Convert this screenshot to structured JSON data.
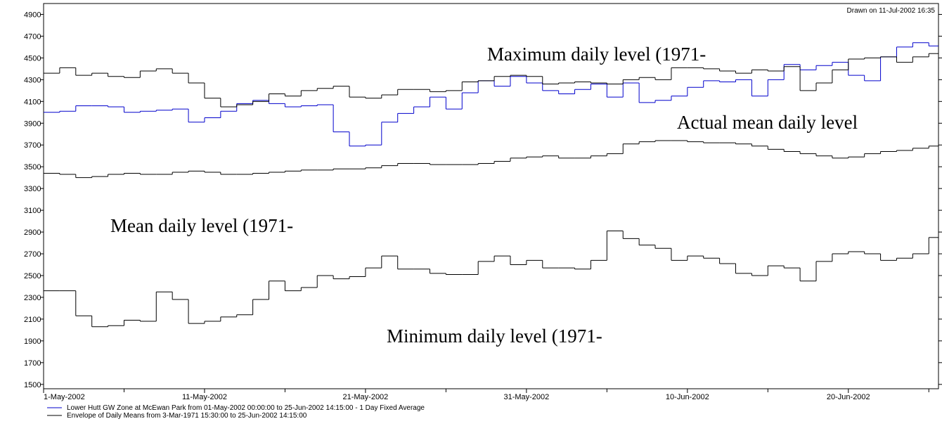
{
  "chart_data": {
    "type": "step",
    "drawn_on": "Drawn on 11-Jul-2002 16:35",
    "annotations": [
      "Maximum daily level (1971-",
      "Actual mean daily level",
      "Mean daily level (1971-",
      "Minimum daily level (1971-"
    ],
    "xlim": [
      0,
      55.6
    ],
    "xticks": [
      {
        "value": 0,
        "label": "1-May-2002"
      },
      {
        "value": 10,
        "label": "11-May-2002"
      },
      {
        "value": 20,
        "label": "21-May-2002"
      },
      {
        "value": 30,
        "label": "31-May-2002"
      },
      {
        "value": 40,
        "label": "10-Jun-2002"
      },
      {
        "value": 50,
        "label": "20-Jun-2002"
      }
    ],
    "minor_xticks": [
      5,
      15,
      25,
      35,
      45,
      55
    ],
    "ylim": [
      1460,
      5000
    ],
    "yticks": [
      1500,
      1700,
      1900,
      2100,
      2300,
      2500,
      2700,
      2900,
      3100,
      3300,
      3500,
      3700,
      3900,
      4100,
      4300,
      4500,
      4700,
      4900
    ],
    "series": [
      {
        "name": "Lower Hutt GW Zone at McEwan Park from 01-May-2002 00:00:00 to 25-Jun-2002 14:15:00 - 1 Day Fixed Average",
        "color": "#0000cc",
        "values": [
          4000,
          4010,
          4060,
          4060,
          4050,
          4000,
          4010,
          4020,
          4030,
          3910,
          3950,
          4010,
          4080,
          4110,
          4080,
          4050,
          4060,
          4070,
          3820,
          3690,
          3700,
          3910,
          3990,
          4050,
          4140,
          4030,
          4180,
          4290,
          4240,
          4330,
          4270,
          4200,
          4170,
          4210,
          4260,
          4140,
          4270,
          4090,
          4110,
          4150,
          4230,
          4290,
          4280,
          4300,
          4150,
          4300,
          4440,
          4390,
          4430,
          4460,
          4340,
          4290,
          4510,
          4600,
          4640,
          4610
        ]
      },
      {
        "name": "Envelope of Daily Means from  3-Mar-1971 15:30:00 to 25-Jun-2002 14:15:00",
        "color": "#000000",
        "values": [
          4360,
          4410,
          4340,
          4360,
          4330,
          4320,
          4380,
          4400,
          4360,
          4270,
          4130,
          4050,
          4070,
          4100,
          4170,
          4150,
          4200,
          4220,
          4240,
          4140,
          4130,
          4160,
          4210,
          4210,
          4190,
          4200,
          4280,
          4290,
          4330,
          4340,
          4330,
          4260,
          4270,
          4280,
          4270,
          4260,
          4300,
          4320,
          4300,
          4410,
          4410,
          4400,
          4380,
          4360,
          4390,
          4380,
          4420,
          4200,
          4270,
          4390,
          4490,
          4500,
          4510,
          4460,
          4510,
          4540
        ],
        "mean": [
          3440,
          3430,
          3400,
          3410,
          3430,
          3440,
          3430,
          3430,
          3450,
          3460,
          3450,
          3430,
          3430,
          3440,
          3450,
          3460,
          3470,
          3470,
          3480,
          3480,
          3490,
          3510,
          3530,
          3530,
          3520,
          3520,
          3520,
          3530,
          3550,
          3580,
          3590,
          3600,
          3580,
          3580,
          3600,
          3620,
          3710,
          3730,
          3740,
          3740,
          3730,
          3720,
          3720,
          3710,
          3690,
          3660,
          3640,
          3620,
          3600,
          3580,
          3590,
          3620,
          3640,
          3650,
          3670,
          3690
        ],
        "min": [
          2360,
          2360,
          2130,
          2030,
          2040,
          2090,
          2080,
          2350,
          2280,
          2060,
          2080,
          2120,
          2140,
          2280,
          2450,
          2360,
          2390,
          2500,
          2470,
          2490,
          2570,
          2680,
          2560,
          2560,
          2520,
          2510,
          2510,
          2630,
          2680,
          2600,
          2640,
          2570,
          2570,
          2560,
          2640,
          2910,
          2840,
          2780,
          2750,
          2640,
          2680,
          2660,
          2610,
          2520,
          2500,
          2590,
          2570,
          2450,
          2630,
          2700,
          2720,
          2700,
          2640,
          2660,
          2700,
          2850
        ]
      }
    ]
  }
}
